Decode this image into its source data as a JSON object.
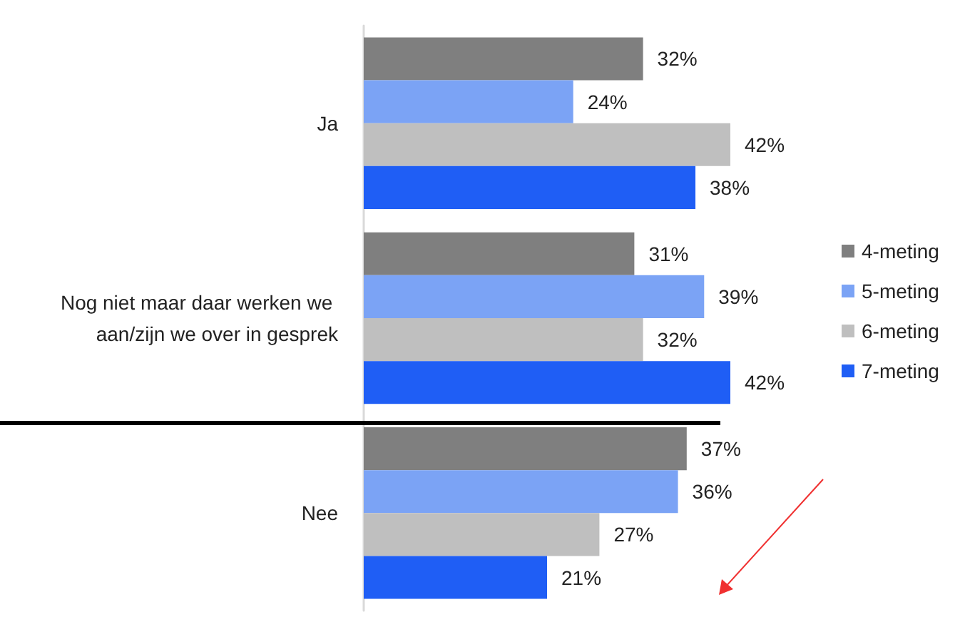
{
  "chart_data": {
    "type": "bar",
    "orientation": "horizontal",
    "categories": [
      "Ja",
      "Nog niet maar daar werken we aan/zijn we over in gesprek",
      "Nee"
    ],
    "series": [
      {
        "name": "4-meting",
        "color": "#7f7f7f",
        "values": [
          32,
          31,
          37
        ],
        "value_labels": [
          "32%",
          "31%",
          "37%"
        ]
      },
      {
        "name": "5-meting",
        "color": "#7ba3f5",
        "values": [
          24,
          39,
          36
        ],
        "value_labels": [
          "24%",
          "39%",
          "36%"
        ]
      },
      {
        "name": "6-meting",
        "color": "#bfbfbf",
        "values": [
          42,
          32,
          27
        ],
        "value_labels": [
          "42%",
          "32%",
          "27%"
        ]
      },
      {
        "name": "7-meting",
        "color": "#1f5ef5",
        "values": [
          38,
          42,
          21
        ],
        "value_labels": [
          "38%",
          "42%",
          "21%"
        ]
      }
    ],
    "legend": "right",
    "tick_labels": "y"
  }
}
